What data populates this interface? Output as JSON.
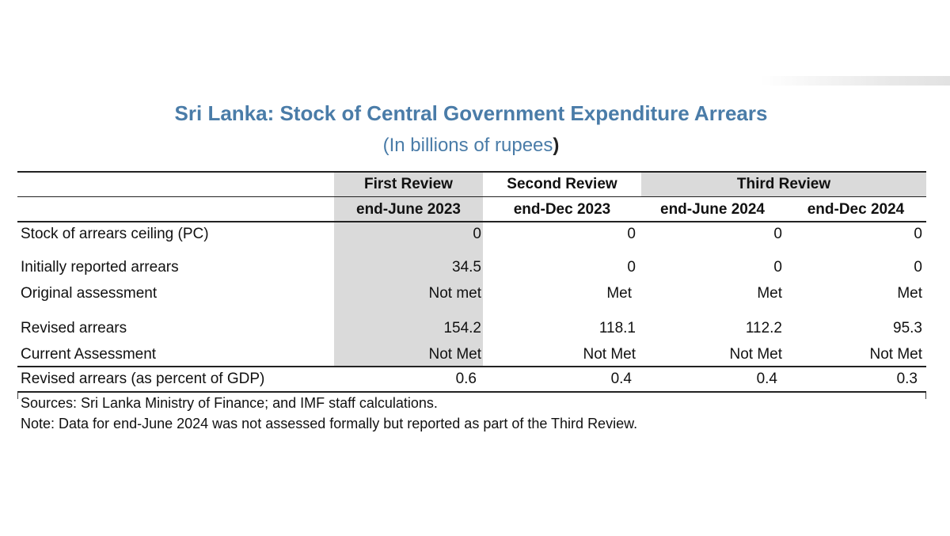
{
  "title": "Sri Lanka: Stock of Central Government Expenditure Arrears",
  "subtitle_main": "(In billions of rupees",
  "subtitle_close": ")",
  "groups": [
    "First Review",
    "Second Review",
    "Third Review"
  ],
  "periods": [
    "end-June 2023",
    "end-Dec 2023",
    "end-June 2024",
    "end-Dec 2024"
  ],
  "rows": [
    {
      "label": "Stock of arrears ceiling (PC)",
      "values": [
        "0",
        "0",
        "0",
        "0"
      ]
    },
    {
      "label": "Initially reported arrears",
      "values": [
        "34.5",
        "0",
        "0",
        "0"
      ]
    },
    {
      "label": "Original assessment",
      "values": [
        "Not met",
        "Met",
        "Met",
        "Met"
      ]
    },
    {
      "label": "Revised arrears",
      "values": [
        "154.2",
        "118.1",
        "112.2",
        "95.3"
      ]
    },
    {
      "label": "Current Assessment",
      "values": [
        "Not Met",
        "Not Met",
        "Not Met",
        "Not Met"
      ]
    },
    {
      "label": "Revised arrears (as percent of GDP)",
      "values": [
        "0.6",
        "0.4",
        "0.4",
        "0.3"
      ]
    }
  ],
  "sources": "Sources: Sri Lanka Ministry of Finance; and IMF staff calculations.",
  "note": "Note: Data for end-June 2024 was not assessed formally but reported as part of the Third Review."
}
